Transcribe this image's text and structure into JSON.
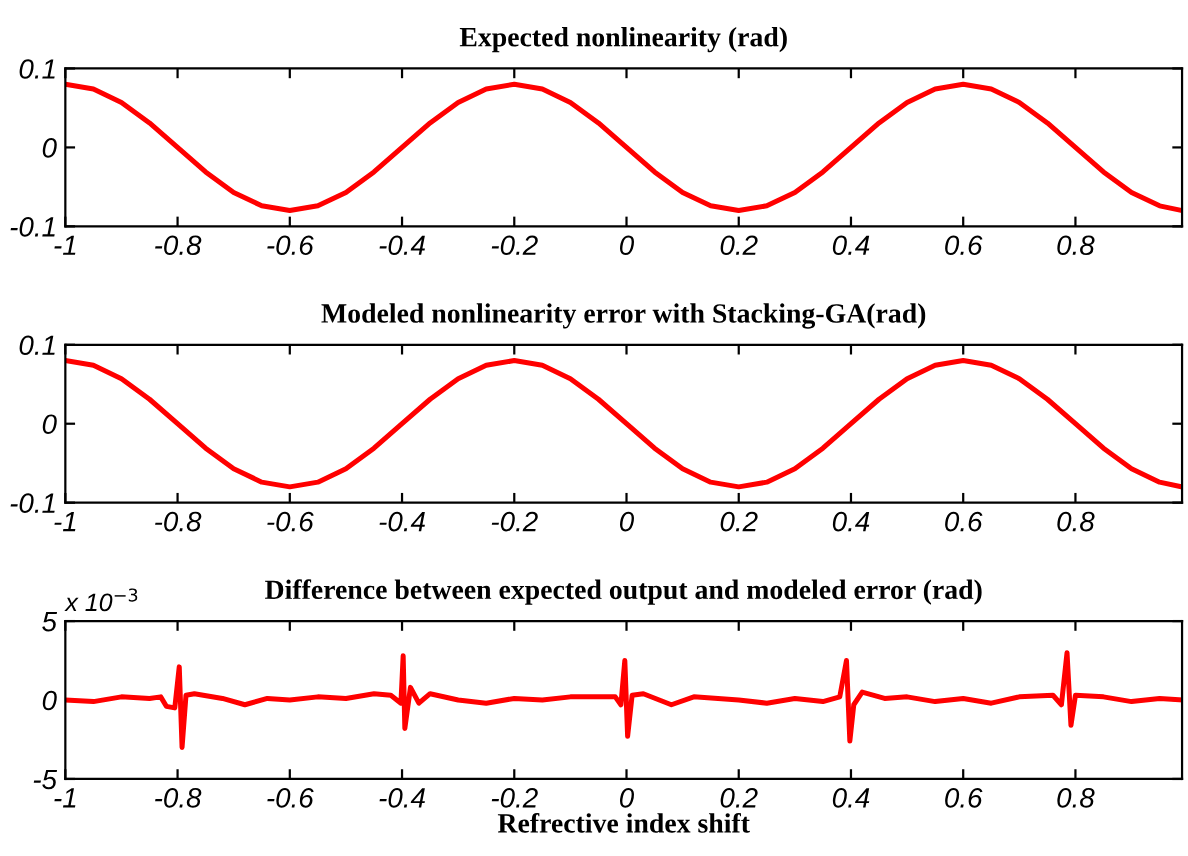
{
  "chart_data": [
    {
      "type": "line",
      "title": "Expected nonlinearity (rad)",
      "x": [
        -1,
        -0.95,
        -0.9,
        -0.85,
        -0.8,
        -0.75,
        -0.7,
        -0.65,
        -0.6,
        -0.55,
        -0.5,
        -0.45,
        -0.4,
        -0.35,
        -0.3,
        -0.25,
        -0.2,
        -0.15,
        -0.1,
        -0.05,
        0,
        0.05,
        0.1,
        0.15,
        0.2,
        0.25,
        0.3,
        0.35,
        0.4,
        0.45,
        0.5,
        0.55,
        0.6,
        0.65,
        0.7,
        0.75,
        0.8,
        0.85,
        0.9,
        0.95,
        0.99
      ],
      "series": [
        {
          "color": "#ff0000",
          "values": [
            0.08,
            0.074,
            0.057,
            0.031,
            0,
            -0.031,
            -0.057,
            -0.074,
            -0.08,
            -0.074,
            -0.057,
            -0.031,
            0,
            0.031,
            0.057,
            0.074,
            0.08,
            0.074,
            0.057,
            0.031,
            0,
            -0.031,
            -0.057,
            -0.074,
            -0.08,
            -0.074,
            -0.057,
            -0.031,
            0,
            0.031,
            0.057,
            0.074,
            0.08,
            0.074,
            0.057,
            0.031,
            0,
            -0.031,
            -0.057,
            -0.074,
            -0.08
          ]
        }
      ],
      "xlim": [
        -1,
        0.99
      ],
      "xticks": [
        -1,
        -0.8,
        -0.6,
        -0.4,
        -0.2,
        0,
        0.2,
        0.4,
        0.6,
        0.8
      ],
      "ylim": [
        -0.1,
        0.1
      ],
      "yticks": [
        -0.1,
        0,
        0.1
      ],
      "grid": false,
      "legend": false
    },
    {
      "type": "line",
      "title": "Modeled nonlinearity error with Stacking-GA(rad)",
      "x": [
        -1,
        -0.95,
        -0.9,
        -0.85,
        -0.8,
        -0.75,
        -0.7,
        -0.65,
        -0.6,
        -0.55,
        -0.5,
        -0.45,
        -0.4,
        -0.35,
        -0.3,
        -0.25,
        -0.2,
        -0.15,
        -0.1,
        -0.05,
        0,
        0.05,
        0.1,
        0.15,
        0.2,
        0.25,
        0.3,
        0.35,
        0.4,
        0.45,
        0.5,
        0.55,
        0.6,
        0.65,
        0.7,
        0.75,
        0.8,
        0.85,
        0.9,
        0.95,
        0.99
      ],
      "series": [
        {
          "color": "#ff0000",
          "values": [
            0.08,
            0.074,
            0.057,
            0.031,
            0,
            -0.031,
            -0.057,
            -0.074,
            -0.08,
            -0.074,
            -0.057,
            -0.031,
            0,
            0.031,
            0.057,
            0.074,
            0.08,
            0.074,
            0.057,
            0.031,
            0,
            -0.031,
            -0.057,
            -0.074,
            -0.08,
            -0.074,
            -0.057,
            -0.031,
            0,
            0.031,
            0.057,
            0.074,
            0.08,
            0.074,
            0.057,
            0.031,
            0,
            -0.031,
            -0.057,
            -0.074,
            -0.08
          ]
        }
      ],
      "xlim": [
        -1,
        0.99
      ],
      "xticks": [
        -1,
        -0.8,
        -0.6,
        -0.4,
        -0.2,
        0,
        0.2,
        0.4,
        0.6,
        0.8
      ],
      "ylim": [
        -0.1,
        0.1
      ],
      "yticks": [
        -0.1,
        0,
        0.1
      ],
      "grid": false,
      "legend": false
    },
    {
      "type": "line",
      "title": "Difference between expected output and modeled error (rad)",
      "xlabel": "Refrective index shift",
      "annotations": [
        "x 10$^{−3}$"
      ],
      "x": [
        -1,
        -0.95,
        -0.9,
        -0.85,
        -0.83,
        -0.82,
        -0.805,
        -0.797,
        -0.792,
        -0.785,
        -0.77,
        -0.72,
        -0.68,
        -0.64,
        -0.6,
        -0.55,
        -0.5,
        -0.45,
        -0.42,
        -0.402,
        -0.398,
        -0.395,
        -0.385,
        -0.37,
        -0.35,
        -0.3,
        -0.25,
        -0.2,
        -0.15,
        -0.1,
        -0.02,
        -0.01,
        -0.003,
        0.002,
        0.01,
        0.03,
        0.08,
        0.12,
        0.2,
        0.25,
        0.3,
        0.35,
        0.38,
        0.392,
        0.398,
        0.405,
        0.42,
        0.46,
        0.5,
        0.55,
        0.6,
        0.65,
        0.7,
        0.76,
        0.775,
        0.785,
        0.792,
        0.8,
        0.85,
        0.9,
        0.95,
        0.99
      ],
      "series": [
        {
          "color": "#ff0000",
          "values": [
            0,
            -0.1,
            0.2,
            0.1,
            0.2,
            -0.4,
            -0.5,
            2.1,
            -3.0,
            0.3,
            0.4,
            0.1,
            -0.3,
            0.1,
            0,
            0.2,
            0.1,
            0.4,
            0.3,
            -0.2,
            2.8,
            -1.8,
            0.8,
            -0.2,
            0.4,
            0,
            -0.2,
            0.1,
            0,
            0.2,
            0.2,
            -0.3,
            2.5,
            -2.3,
            0.3,
            0.4,
            -0.3,
            0.2,
            0,
            -0.2,
            0.1,
            -0.1,
            0.2,
            2.5,
            -2.6,
            -0.3,
            0.5,
            0.1,
            0.2,
            -0.1,
            0.1,
            -0.2,
            0.2,
            0.3,
            -0.3,
            3.0,
            -1.6,
            0.3,
            0.2,
            -0.1,
            0.1,
            0
          ]
        }
      ],
      "xlim": [
        -1,
        0.99
      ],
      "xticks": [
        -1,
        -0.8,
        -0.6,
        -0.4,
        -0.2,
        0,
        0.2,
        0.4,
        0.6,
        0.8
      ],
      "ylim": [
        -5,
        5
      ],
      "yticks": [
        -5,
        0,
        5
      ],
      "grid": false,
      "legend": false
    }
  ]
}
